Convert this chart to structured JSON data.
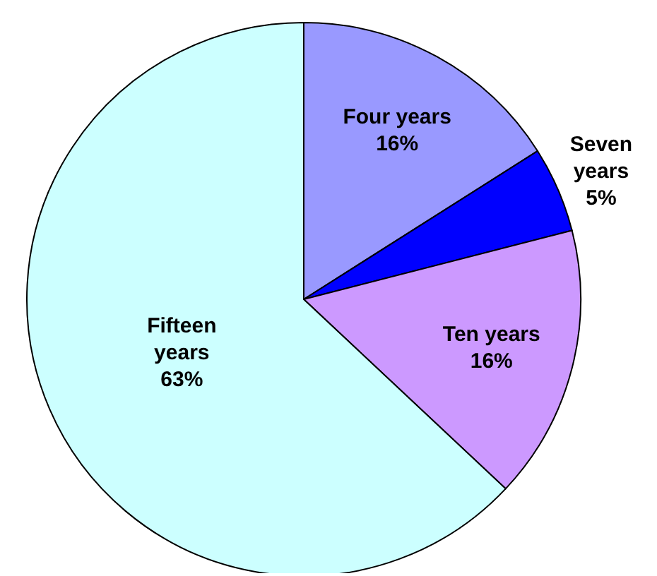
{
  "chart_data": {
    "type": "pie",
    "categories": [
      "Four years",
      "Seven years",
      "Ten years",
      "Fifteen years"
    ],
    "values": [
      16,
      5,
      16,
      63
    ],
    "colors": [
      "#9999ff",
      "#0000ff",
      "#cc99ff",
      "#ccffff"
    ],
    "value_labels": [
      "16%",
      "5%",
      "16%",
      "63%"
    ]
  }
}
